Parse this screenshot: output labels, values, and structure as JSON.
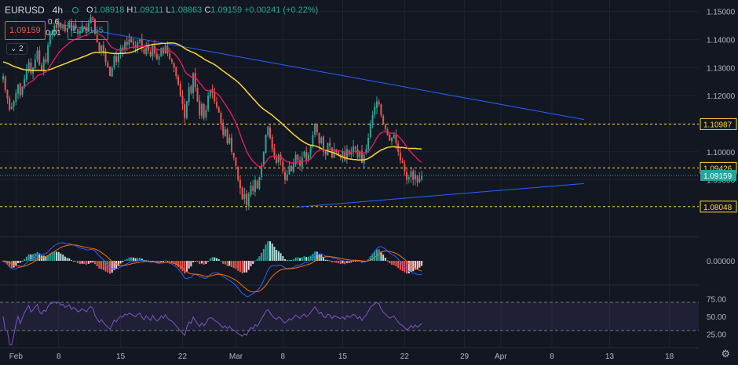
{
  "header": {
    "symbol": "EURUSD",
    "timeframe": "4h",
    "open_label": "O",
    "open": "1.08918",
    "high_label": "H",
    "high": "1.09211",
    "low_label": "L",
    "low": "1.08863",
    "close_label": "C",
    "close": "1.09159",
    "change": "+0.00241 (+0.22%)"
  },
  "trade": {
    "sell_price": "1.09159",
    "spread_top": "0.6",
    "spread_bottom": "0.01",
    "buy_price": "1.09165"
  },
  "indicator_toggle": "2",
  "colors": {
    "background": "#131722",
    "up": "#26a69a",
    "down": "#ef5350",
    "ma_fast": "#e91e63",
    "ma_slow": "#fdd835",
    "trendline": "#2962ff",
    "level": "#fdd835",
    "rsi": "#7e57c2"
  },
  "icons": [
    "settings-gear-icon",
    "chevron-collapse-icon"
  ],
  "chart_data": [
    {
      "type": "candlestick",
      "ylim": [
        1.0715,
        1.1535
      ],
      "yticks": [
        "1.15000",
        "1.14000",
        "1.13000",
        "1.12000",
        "1.11000",
        "1.10000",
        "1.09000"
      ],
      "xtick_labels": [
        {
          "label": "Feb",
          "index": 6
        },
        {
          "label": "8",
          "index": 26
        },
        {
          "label": "15",
          "index": 55
        },
        {
          "label": "22",
          "index": 84
        },
        {
          "label": "Mar",
          "index": 109
        },
        {
          "label": "8",
          "index": 131
        },
        {
          "label": "15",
          "index": 159
        },
        {
          "label": "22",
          "index": 188
        },
        {
          "label": "29",
          "index": 216
        },
        {
          "label": "Apr",
          "index": 233
        },
        {
          "label": "8",
          "index": 257
        },
        {
          "label": "13",
          "index": 284
        },
        {
          "label": "18",
          "index": 312
        }
      ],
      "levels": [
        {
          "value": 1.10987,
          "label": "1.10987"
        },
        {
          "value": 1.09426,
          "label": "1.09426"
        },
        {
          "value": 1.08048,
          "label": "1.08048"
        }
      ],
      "last_price": {
        "value": 1.09159,
        "label": "1.09159"
      },
      "trendlines": [
        {
          "from": [
            26,
            1.1455
          ],
          "to": [
            272,
            1.1115
          ]
        },
        {
          "from": [
            137,
            1.0803
          ],
          "to": [
            272,
            1.0887
          ]
        }
      ],
      "closes": [
        1.127,
        1.122,
        1.119,
        1.115,
        1.116,
        1.118,
        1.121,
        1.124,
        1.12,
        1.123,
        1.126,
        1.129,
        1.132,
        1.128,
        1.13,
        1.133,
        1.136,
        1.131,
        1.129,
        1.133,
        1.132,
        1.138,
        1.142,
        1.143,
        1.145,
        1.144,
        1.146,
        1.144,
        1.145,
        1.143,
        1.144,
        1.146,
        1.143,
        1.145,
        1.144,
        1.142,
        1.143,
        1.145,
        1.144,
        1.143,
        1.146,
        1.148,
        1.147,
        1.142,
        1.139,
        1.136,
        1.138,
        1.135,
        1.132,
        1.13,
        1.127,
        1.13,
        1.134,
        1.132,
        1.135,
        1.137,
        1.136,
        1.139,
        1.138,
        1.14,
        1.139,
        1.138,
        1.137,
        1.139,
        1.14,
        1.137,
        1.135,
        1.138,
        1.136,
        1.134,
        1.138,
        1.135,
        1.133,
        1.134,
        1.137,
        1.135,
        1.138,
        1.135,
        1.133,
        1.132,
        1.13,
        1.127,
        1.124,
        1.12,
        1.117,
        1.112,
        1.118,
        1.123,
        1.121,
        1.128,
        1.123,
        1.118,
        1.113,
        1.117,
        1.112,
        1.115,
        1.12,
        1.122,
        1.121,
        1.118,
        1.116,
        1.114,
        1.11,
        1.106,
        1.108,
        1.103,
        1.105,
        1.1,
        1.098,
        1.095,
        1.09,
        1.087,
        1.083,
        1.085,
        1.081,
        1.085,
        1.088,
        1.086,
        1.09,
        1.087,
        1.091,
        1.095,
        1.1,
        1.106,
        1.109,
        1.105,
        1.101,
        1.098,
        1.096,
        1.099,
        1.097,
        1.093,
        1.09,
        1.092,
        1.095,
        1.093,
        1.096,
        1.099,
        1.097,
        1.095,
        1.098,
        1.1,
        1.097,
        1.099,
        1.102,
        1.106,
        1.11,
        1.107,
        1.103,
        1.105,
        1.1,
        1.099,
        1.103,
        1.102,
        1.098,
        1.101,
        1.1,
        1.099,
        1.098,
        1.1,
        1.097,
        1.101,
        1.099,
        1.1,
        1.102,
        1.101,
        1.098,
        1.1,
        1.096,
        1.099,
        1.101,
        1.105,
        1.11,
        1.113,
        1.116,
        1.118,
        1.117,
        1.113,
        1.11,
        1.108,
        1.106,
        1.104,
        1.105,
        1.106,
        1.103,
        1.1,
        1.097,
        1.096,
        1.093,
        1.09,
        1.091,
        1.093,
        1.09,
        1.092,
        1.089,
        1.0905,
        1.0916
      ]
    },
    {
      "type": "histogram",
      "name": "MACD",
      "yticks": [
        "0.00000"
      ],
      "ylim": [
        -0.006,
        0.006
      ]
    },
    {
      "type": "line",
      "name": "RSI",
      "yticks": [
        "75.00",
        "50.00",
        "25.00"
      ],
      "ylim": [
        10,
        90
      ],
      "band": [
        30,
        70
      ]
    }
  ]
}
